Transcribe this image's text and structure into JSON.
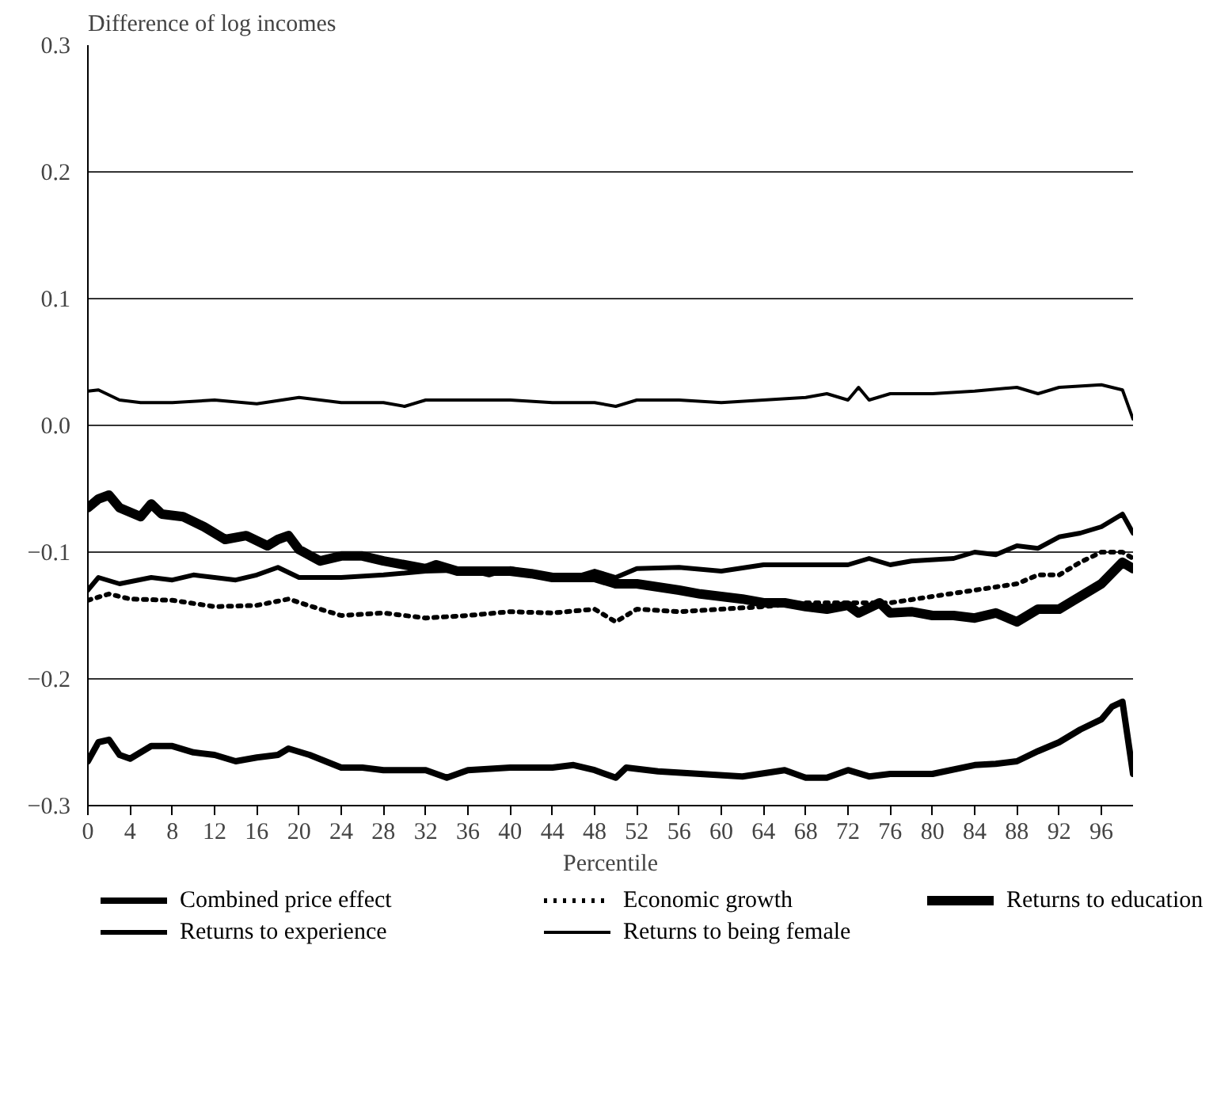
{
  "chart_data": {
    "type": "line",
    "ylabel": "Difference of log incomes",
    "xlabel": "Percentile",
    "xlim": [
      0,
      99
    ],
    "xticks": [
      0,
      4,
      8,
      12,
      16,
      20,
      24,
      28,
      32,
      36,
      40,
      44,
      48,
      52,
      56,
      60,
      64,
      68,
      72,
      76,
      80,
      84,
      88,
      92,
      96
    ],
    "ylim": [
      -0.3,
      0.3
    ],
    "yticks": [
      {
        "value": -0.3,
        "label": "−0.3"
      },
      {
        "value": -0.2,
        "label": "−0.2"
      },
      {
        "value": -0.1,
        "label": "−0.1"
      },
      {
        "value": 0,
        "label": "0.0"
      },
      {
        "value": 0.1,
        "label": "0.1"
      },
      {
        "value": 0.2,
        "label": "0.2"
      },
      {
        "value": 0.3,
        "label": "0.3"
      }
    ],
    "grid": "y",
    "legend": "bottom",
    "line_style": "solid",
    "series": [
      {
        "name": "Combined price effect",
        "color": "#000000",
        "x": [
          0,
          1,
          2,
          3,
          4,
          6,
          8,
          10,
          12,
          14,
          16,
          18,
          19,
          21,
          24,
          26,
          28,
          32,
          34,
          36,
          40,
          44,
          46,
          48,
          50,
          51,
          54,
          58,
          62,
          66,
          68,
          70,
          72,
          74,
          76,
          80,
          84,
          86,
          88,
          90,
          92,
          94,
          96,
          97,
          98,
          99
        ],
        "values": [
          -0.265,
          -0.25,
          -0.248,
          -0.26,
          -0.263,
          -0.253,
          -0.253,
          -0.258,
          -0.26,
          -0.265,
          -0.262,
          -0.26,
          -0.255,
          -0.26,
          -0.27,
          -0.27,
          -0.272,
          -0.272,
          -0.278,
          -0.272,
          -0.27,
          -0.27,
          -0.268,
          -0.272,
          -0.278,
          -0.27,
          -0.273,
          -0.275,
          -0.277,
          -0.272,
          -0.278,
          -0.278,
          -0.272,
          -0.277,
          -0.275,
          -0.275,
          -0.268,
          -0.267,
          -0.265,
          -0.257,
          -0.25,
          -0.24,
          -0.232,
          -0.222,
          -0.218,
          -0.275
        ]
      },
      {
        "name": "Economic growth",
        "color": "#000000",
        "line_style": "dotted",
        "x": [
          0,
          2,
          4,
          8,
          12,
          16,
          19,
          22,
          24,
          28,
          32,
          36,
          40,
          44,
          48,
          50,
          52,
          56,
          60,
          64,
          68,
          72,
          76,
          80,
          84,
          88,
          90,
          92,
          94,
          96,
          98,
          99
        ],
        "values": [
          -0.138,
          -0.133,
          -0.137,
          -0.138,
          -0.143,
          -0.142,
          -0.137,
          -0.145,
          -0.15,
          -0.148,
          -0.152,
          -0.15,
          -0.147,
          -0.148,
          -0.145,
          -0.155,
          -0.145,
          -0.147,
          -0.145,
          -0.143,
          -0.14,
          -0.14,
          -0.14,
          -0.135,
          -0.13,
          -0.125,
          -0.118,
          -0.118,
          -0.108,
          -0.1,
          -0.1,
          -0.105
        ]
      },
      {
        "name": "Returns to education",
        "color": "#000000",
        "x": [
          0,
          1,
          2,
          3,
          5,
          6,
          7,
          9,
          11,
          13,
          15,
          17,
          18,
          19,
          20,
          22,
          24,
          26,
          28,
          30,
          32,
          33,
          35,
          38,
          40,
          42,
          44,
          46,
          48,
          50,
          52,
          56,
          58,
          60,
          62,
          64,
          66,
          68,
          70,
          72,
          73,
          75,
          76,
          78,
          80,
          82,
          84,
          86,
          88,
          90,
          92,
          94,
          96,
          98,
          99
        ],
        "values": [
          -0.065,
          -0.058,
          -0.055,
          -0.065,
          -0.072,
          -0.062,
          -0.07,
          -0.072,
          -0.08,
          -0.09,
          -0.087,
          -0.095,
          -0.09,
          -0.087,
          -0.098,
          -0.107,
          -0.103,
          -0.103,
          -0.107,
          -0.11,
          -0.113,
          -0.11,
          -0.115,
          -0.115,
          -0.115,
          -0.117,
          -0.12,
          -0.12,
          -0.12,
          -0.125,
          -0.125,
          -0.13,
          -0.133,
          -0.135,
          -0.137,
          -0.14,
          -0.14,
          -0.143,
          -0.145,
          -0.142,
          -0.148,
          -0.14,
          -0.148,
          -0.147,
          -0.15,
          -0.15,
          -0.152,
          -0.148,
          -0.155,
          -0.145,
          -0.145,
          -0.135,
          -0.125,
          -0.108,
          -0.113
        ]
      },
      {
        "name": "Returns to experience",
        "color": "#000000",
        "x": [
          0,
          1,
          3,
          6,
          8,
          10,
          12,
          14,
          16,
          18,
          20,
          24,
          28,
          32,
          36,
          38,
          40,
          44,
          46,
          48,
          50,
          52,
          56,
          60,
          64,
          68,
          70,
          72,
          74,
          76,
          78,
          82,
          84,
          86,
          88,
          90,
          92,
          94,
          96,
          98,
          99
        ],
        "values": [
          -0.13,
          -0.12,
          -0.125,
          -0.12,
          -0.122,
          -0.118,
          -0.12,
          -0.122,
          -0.118,
          -0.112,
          -0.12,
          -0.12,
          -0.118,
          -0.115,
          -0.114,
          -0.118,
          -0.113,
          -0.12,
          -0.12,
          -0.115,
          -0.12,
          -0.113,
          -0.112,
          -0.115,
          -0.11,
          -0.11,
          -0.11,
          -0.11,
          -0.105,
          -0.11,
          -0.107,
          -0.105,
          -0.1,
          -0.102,
          -0.095,
          -0.097,
          -0.088,
          -0.085,
          -0.08,
          -0.07,
          -0.085
        ]
      },
      {
        "name": "Returns to being female",
        "color": "#000000",
        "x": [
          0,
          1,
          3,
          5,
          8,
          12,
          16,
          20,
          24,
          28,
          30,
          32,
          36,
          40,
          44,
          48,
          50,
          52,
          56,
          60,
          64,
          68,
          70,
          72,
          73,
          74,
          76,
          80,
          84,
          88,
          90,
          92,
          96,
          98,
          99
        ],
        "values": [
          0.027,
          0.028,
          0.02,
          0.018,
          0.018,
          0.02,
          0.017,
          0.022,
          0.018,
          0.018,
          0.015,
          0.02,
          0.02,
          0.02,
          0.018,
          0.018,
          0.015,
          0.02,
          0.02,
          0.018,
          0.02,
          0.022,
          0.025,
          0.02,
          0.03,
          0.02,
          0.025,
          0.025,
          0.027,
          0.03,
          0.025,
          0.03,
          0.032,
          0.028,
          0.005
        ]
      }
    ]
  }
}
